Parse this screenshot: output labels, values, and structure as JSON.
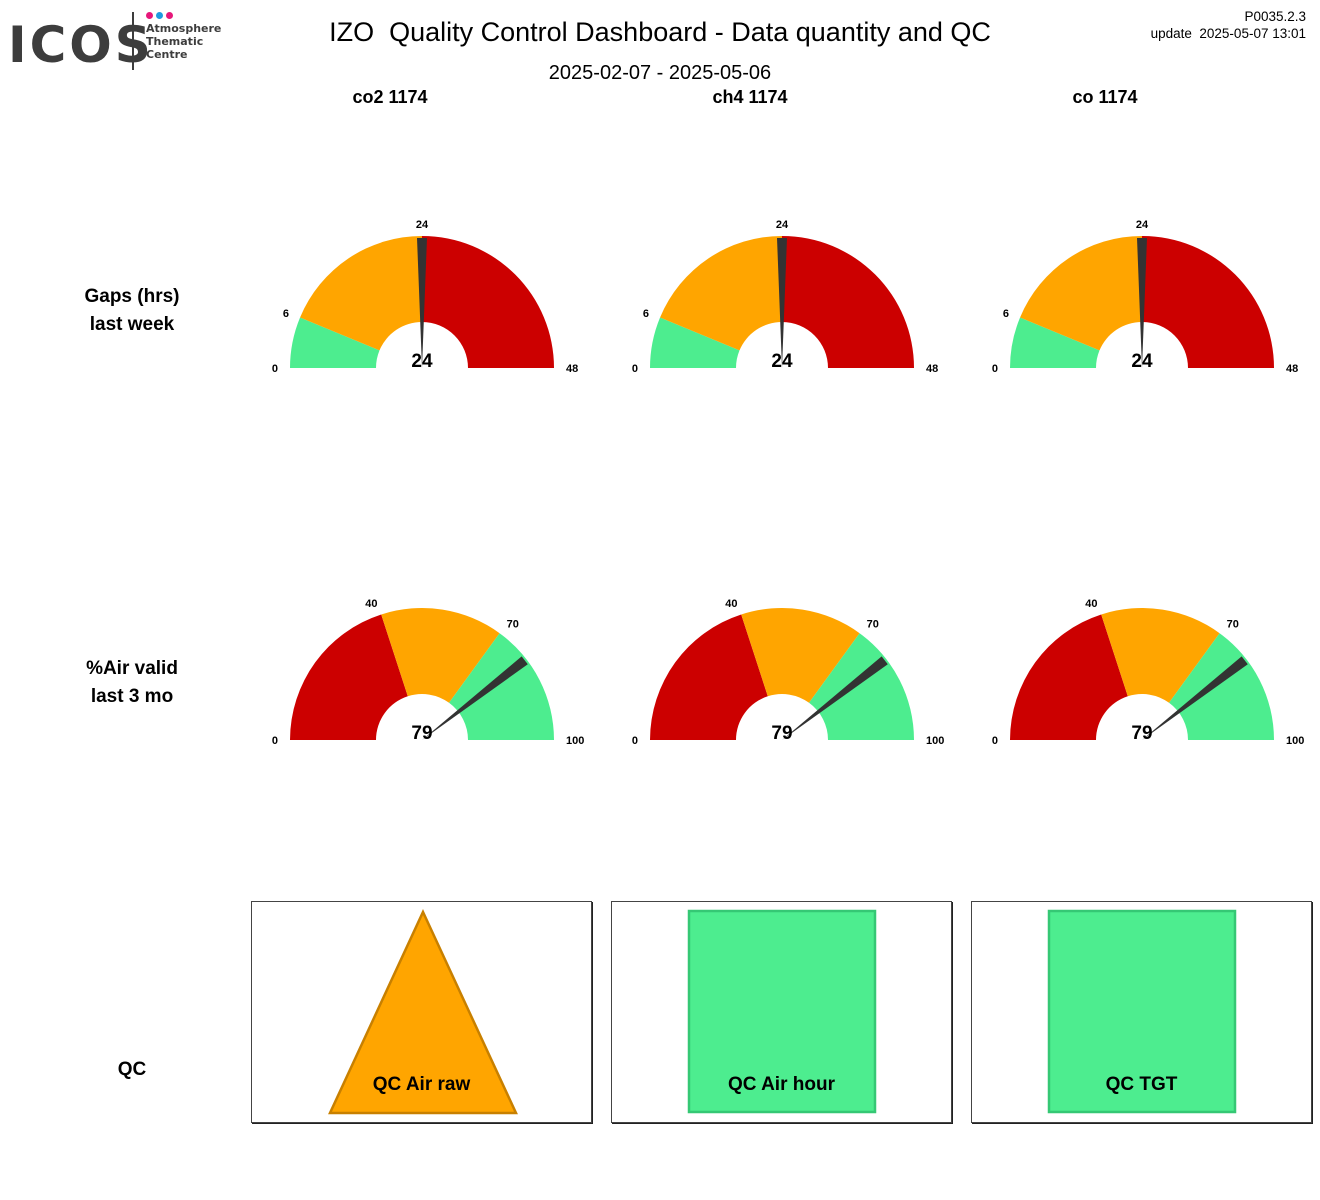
{
  "header": {
    "logo_text": "ICOS",
    "logo_sub": [
      "Atmosphere",
      "Thematic",
      "Centre"
    ],
    "title": "IZO  Quality Control Dashboard - Data quantity and QC",
    "date_range": "2025-02-07 - 2025-05-06",
    "version": "P0035.2.3",
    "update": "update  2025-05-07 13:01"
  },
  "colors": {
    "green": "#4ded8f",
    "orange": "#ffa500",
    "red": "#cc0000",
    "needle": "#333333",
    "logo_dots": [
      "#e6177a",
      "#1e9be0",
      "#e6177a"
    ]
  },
  "columns": [
    "co2 1174",
    "ch4 1174",
    "co 1174"
  ],
  "row_labels": {
    "gaps": [
      "Gaps (hrs)",
      "last week"
    ],
    "air_valid": [
      "%Air valid",
      "last 3 mo"
    ],
    "qc": "QC"
  },
  "chart_data": [
    {
      "type": "gauge",
      "row": "gaps",
      "min": 0,
      "max": 48,
      "bands": [
        {
          "from": 0,
          "to": 6,
          "color": "green"
        },
        {
          "from": 6,
          "to": 24,
          "color": "orange"
        },
        {
          "from": 24,
          "to": 48,
          "color": "red"
        }
      ],
      "tick_labels": [
        "0",
        "6",
        "24",
        "48"
      ],
      "values": [
        24,
        24,
        24
      ]
    },
    {
      "type": "gauge",
      "row": "air_valid",
      "min": 0,
      "max": 100,
      "bands": [
        {
          "from": 0,
          "to": 40,
          "color": "red"
        },
        {
          "from": 40,
          "to": 70,
          "color": "orange"
        },
        {
          "from": 70,
          "to": 100,
          "color": "green"
        }
      ],
      "tick_labels": [
        "0",
        "40",
        "70",
        "100"
      ],
      "values": [
        79,
        79,
        79
      ]
    }
  ],
  "qc": [
    {
      "label": "QC Air raw",
      "shape": "triangle",
      "color": "orange"
    },
    {
      "label": "QC Air hour",
      "shape": "square",
      "color": "green"
    },
    {
      "label": "QC TGT",
      "shape": "square",
      "color": "green"
    }
  ]
}
